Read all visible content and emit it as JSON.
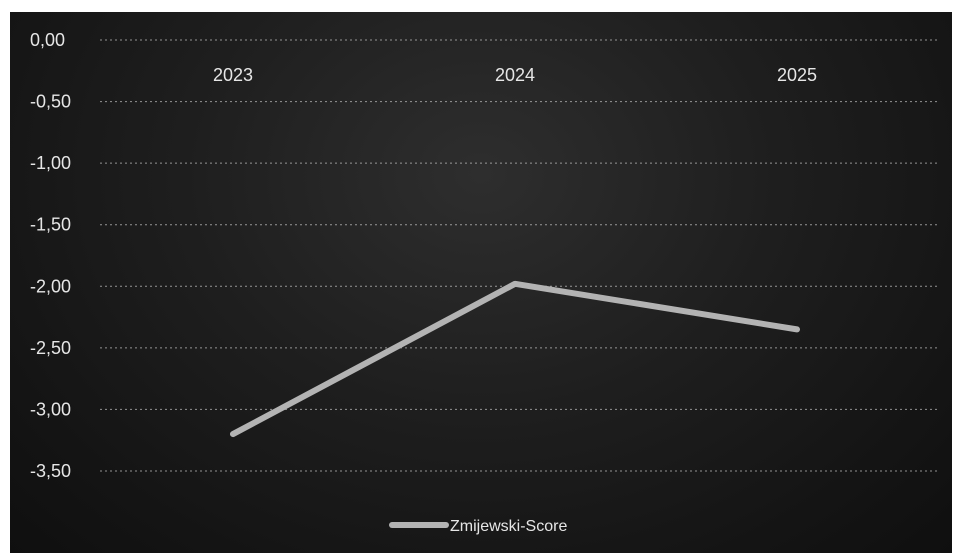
{
  "chart_data": {
    "type": "line",
    "title": "",
    "xlabel": "",
    "ylabel": "",
    "categories": [
      "2023",
      "2024",
      "2025"
    ],
    "x_axis_position": "top",
    "ylim": [
      -3.5,
      0
    ],
    "yticks": [
      "0,00",
      "-0,50",
      "-1,00",
      "-1,50",
      "-2,00",
      "-2,50",
      "-3,00",
      "-3,50"
    ],
    "ytick_values": [
      0,
      -0.5,
      -1,
      -1.5,
      -2,
      -2.5,
      -3,
      -3.5
    ],
    "grid": true,
    "legend_position": "bottom",
    "series": [
      {
        "name": "Zmijewski-Score",
        "values": [
          -3.2,
          -1.98,
          -2.35
        ],
        "color": "#b3b3b3"
      }
    ]
  },
  "colors": {
    "background": "#1e1e1e",
    "text": "#e6e6e6",
    "grid": "#bdbdbd"
  }
}
